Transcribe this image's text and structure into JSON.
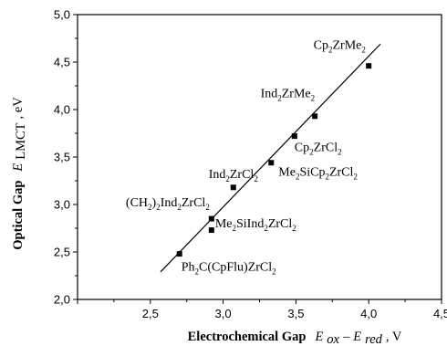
{
  "chart_data": {
    "type": "scatter",
    "xlim": [
      2.0,
      4.5
    ],
    "ylim": [
      2.0,
      5.0
    ],
    "x_ticks": [
      "2,5",
      "3,0",
      "3,5",
      "4,0",
      "4,5"
    ],
    "x_tick_values": [
      2.5,
      3.0,
      3.5,
      4.0,
      4.5
    ],
    "y_ticks": [
      "2,0",
      "2,5",
      "3,0",
      "3,5",
      "4,0",
      "4,5",
      "5,0"
    ],
    "y_tick_values": [
      2.0,
      2.5,
      3.0,
      3.5,
      4.0,
      4.5,
      5.0
    ],
    "xlabel": {
      "bold": "Electrochemical Gap",
      "sym": "E",
      "sub1": "ox",
      "mid": "–",
      "sym2": "E",
      "sub2": "red",
      "unit": ", V"
    },
    "ylabel": {
      "bold": "Optical Gap",
      "sym": "E",
      "sub": "LMCT",
      "unit": ", eV"
    },
    "grid": false,
    "fit_line": {
      "x": [
        2.57,
        4.08
      ],
      "y": [
        2.29,
        4.69
      ]
    },
    "points": [
      {
        "x": 2.7,
        "y": 2.48
      },
      {
        "x": 2.92,
        "y": 2.73
      },
      {
        "x": 2.92,
        "y": 2.85
      },
      {
        "x": 3.07,
        "y": 3.18
      },
      {
        "x": 3.33,
        "y": 3.44
      },
      {
        "x": 3.49,
        "y": 3.72
      },
      {
        "x": 3.63,
        "y": 3.93
      },
      {
        "x": 4.0,
        "y": 4.46
      }
    ],
    "annotations": [
      {
        "parts": [
          [
            "Ph",
            ""
          ],
          [
            "2",
            "sub"
          ],
          [
            "C(CpFlu)ZrCl",
            ""
          ],
          [
            "2",
            "sub"
          ]
        ],
        "x": 2.7,
        "y": 2.42,
        "dx": 2,
        "dy": 12,
        "anchor": "start"
      },
      {
        "parts": [
          [
            "Me",
            ""
          ],
          [
            "2",
            "sub"
          ],
          [
            "SiInd",
            ""
          ],
          [
            "2",
            "sub"
          ],
          [
            "ZrCl",
            ""
          ],
          [
            "2",
            "sub"
          ]
        ],
        "x": 2.92,
        "y": 2.78,
        "dx": 4,
        "dy": 2,
        "anchor": "start"
      },
      {
        "parts": [
          [
            "(CH",
            ""
          ],
          [
            "2",
            "sub"
          ],
          [
            ")",
            ""
          ],
          [
            "2",
            "sub"
          ],
          [
            "Ind",
            ""
          ],
          [
            "2",
            "sub"
          ],
          [
            "ZrCl",
            ""
          ],
          [
            "2",
            "sub"
          ]
        ],
        "x": 2.92,
        "y": 2.98,
        "dx": -2,
        "dy": 0,
        "anchor": "end"
      },
      {
        "parts": [
          [
            "Ind",
            ""
          ],
          [
            "2",
            "sub"
          ],
          [
            "ZrCl",
            ""
          ],
          [
            "2",
            "sub"
          ]
        ],
        "x": 3.07,
        "y": 3.28,
        "dx": 0,
        "dy": 0,
        "anchor": "middle"
      },
      {
        "parts": [
          [
            "Me",
            ""
          ],
          [
            "2",
            "sub"
          ],
          [
            "SiCp",
            ""
          ],
          [
            "2",
            "sub"
          ],
          [
            "ZrCl",
            ""
          ],
          [
            "2",
            "sub"
          ]
        ],
        "x": 3.33,
        "y": 3.38,
        "dx": 8,
        "dy": 8,
        "anchor": "start"
      },
      {
        "parts": [
          [
            "Cp",
            ""
          ],
          [
            "2",
            "sub"
          ],
          [
            "ZrCl",
            ""
          ],
          [
            "2",
            "sub"
          ]
        ],
        "x": 3.49,
        "y": 3.6,
        "dx": 0,
        "dy": 4,
        "anchor": "start"
      },
      {
        "parts": [
          [
            "Ind",
            ""
          ],
          [
            "2",
            "sub"
          ],
          [
            "ZrMe",
            ""
          ],
          [
            "2",
            "sub"
          ]
        ],
        "x": 3.63,
        "y": 4.13,
        "dx": 0,
        "dy": 0,
        "anchor": "end"
      },
      {
        "parts": [
          [
            "Cp",
            ""
          ],
          [
            "2",
            "sub"
          ],
          [
            "ZrMe",
            ""
          ],
          [
            "2",
            "sub"
          ]
        ],
        "x": 3.8,
        "y": 4.64,
        "dx": 0,
        "dy": 0,
        "anchor": "middle"
      }
    ]
  }
}
